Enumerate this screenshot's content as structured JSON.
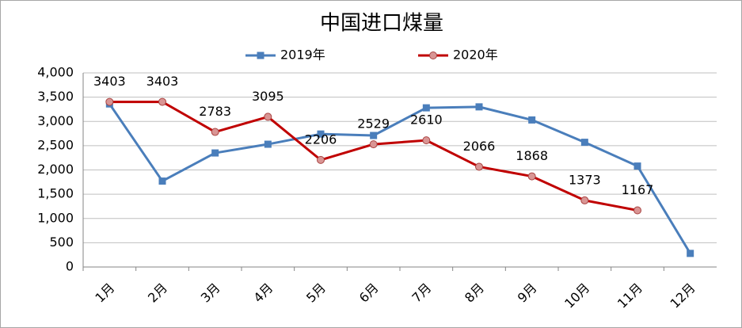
{
  "chart_data": {
    "type": "line",
    "title": "中国进口煤量",
    "categories": [
      "1月",
      "2月",
      "3月",
      "4月",
      "5月",
      "6月",
      "7月",
      "8月",
      "9月",
      "10月",
      "11月",
      "12月"
    ],
    "series": [
      {
        "name": "2019年",
        "color": "#4a7ebb",
        "marker": "square",
        "values": [
          3360,
          1770,
          2350,
          2530,
          2740,
          2710,
          3280,
          3300,
          3030,
          2570,
          2080,
          280
        ]
      },
      {
        "name": "2020年",
        "color": "#c00000",
        "marker": "circle",
        "data_labels": true,
        "values": [
          3403,
          3403,
          2783,
          3095,
          2206,
          2529,
          2610,
          2066,
          1868,
          1373,
          1167,
          null
        ]
      }
    ],
    "ylim": [
      0,
      4000
    ],
    "yticks": [
      0,
      500,
      {
        "value": 1000,
        "label": "1,000"
      },
      {
        "value": 1500,
        "label": "1,500"
      },
      {
        "value": 2000,
        "label": "2,000"
      },
      {
        "value": 2500,
        "label": "2,500"
      },
      {
        "value": 3000,
        "label": "3,000"
      },
      {
        "value": 3500,
        "label": "3,500"
      },
      {
        "value": 4000,
        "label": "4,000"
      }
    ],
    "grid": true,
    "legend": "top"
  }
}
